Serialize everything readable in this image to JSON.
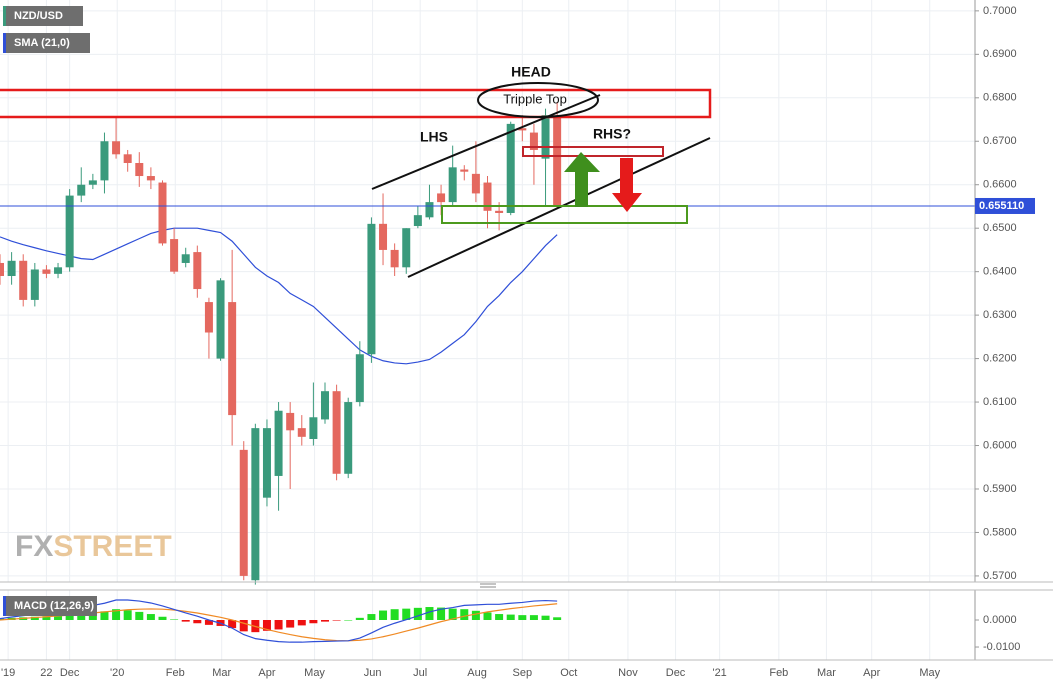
{
  "chart_data": [
    {
      "type": "candlestick",
      "symbol": "NZD/USD",
      "open": [
        0.642,
        0.639,
        0.6425,
        0.6335,
        0.6405,
        0.6395,
        0.641,
        0.6575,
        0.66,
        0.661,
        0.67,
        0.667,
        0.665,
        0.662,
        0.6605,
        0.6475,
        0.642,
        0.6445,
        0.633,
        0.62,
        0.633,
        0.599,
        0.569,
        0.588,
        0.593,
        0.6075,
        0.604,
        0.6015,
        0.606,
        0.6125,
        0.5935,
        0.61,
        0.621,
        0.651,
        0.645,
        0.641,
        0.6505,
        0.6525,
        0.658,
        0.656,
        0.6635,
        0.6625,
        0.6605,
        0.654,
        0.6535,
        0.673,
        0.672,
        0.666,
        0.676
      ],
      "high": [
        0.644,
        0.6445,
        0.644,
        0.642,
        0.6415,
        0.642,
        0.659,
        0.664,
        0.6625,
        0.672,
        0.6756,
        0.668,
        0.6675,
        0.664,
        0.661,
        0.65,
        0.6455,
        0.646,
        0.634,
        0.6385,
        0.645,
        0.601,
        0.605,
        0.606,
        0.61,
        0.61,
        0.607,
        0.6145,
        0.6145,
        0.614,
        0.611,
        0.624,
        0.6525,
        0.658,
        0.6465,
        0.65,
        0.655,
        0.66,
        0.66,
        0.669,
        0.6645,
        0.67,
        0.662,
        0.656,
        0.6745,
        0.676,
        0.674,
        0.6775,
        0.679
      ],
      "low": [
        0.637,
        0.637,
        0.632,
        0.632,
        0.6385,
        0.6385,
        0.64,
        0.656,
        0.659,
        0.658,
        0.666,
        0.663,
        0.6595,
        0.659,
        0.646,
        0.6395,
        0.641,
        0.634,
        0.62,
        0.6195,
        0.6,
        0.569,
        0.568,
        0.586,
        0.585,
        0.59,
        0.6,
        0.6,
        0.605,
        0.592,
        0.5925,
        0.609,
        0.619,
        0.6415,
        0.639,
        0.6395,
        0.65,
        0.652,
        0.653,
        0.655,
        0.661,
        0.656,
        0.65,
        0.6495,
        0.653,
        0.67,
        0.66,
        0.655,
        0.6545
      ],
      "close": [
        0.639,
        0.6425,
        0.6335,
        0.6405,
        0.6395,
        0.641,
        0.6575,
        0.66,
        0.661,
        0.67,
        0.667,
        0.665,
        0.662,
        0.661,
        0.6465,
        0.64,
        0.644,
        0.636,
        0.626,
        0.638,
        0.607,
        0.57,
        0.604,
        0.604,
        0.608,
        0.6035,
        0.602,
        0.6065,
        0.6125,
        0.5935,
        0.61,
        0.621,
        0.651,
        0.645,
        0.641,
        0.65,
        0.653,
        0.656,
        0.656,
        0.664,
        0.663,
        0.658,
        0.654,
        0.6535,
        0.674,
        0.6725,
        0.668,
        0.676,
        0.65511
      ],
      "up_color": "#3a9a7c",
      "down_color": "#e4685f",
      "overlays": [
        {
          "name": "SMA (21,0)",
          "color": "#2f4fd8",
          "values": [
            0.648,
            0.647,
            0.6462,
            0.6455,
            0.6448,
            0.6442,
            0.6436,
            0.643,
            0.6428,
            0.644,
            0.6452,
            0.6464,
            0.6476,
            0.6488,
            0.6495,
            0.65,
            0.65,
            0.65,
            0.6495,
            0.649,
            0.647,
            0.644,
            0.641,
            0.639,
            0.6375,
            0.635,
            0.6335,
            0.632,
            0.6295,
            0.627,
            0.6245,
            0.622,
            0.6205,
            0.6195,
            0.619,
            0.6188,
            0.6192,
            0.6198,
            0.6215,
            0.6235,
            0.6255,
            0.6285,
            0.632,
            0.6345,
            0.6375,
            0.64,
            0.643,
            0.646,
            0.6485
          ]
        }
      ],
      "last_label": "0.655110",
      "annotations": [
        "HEAD",
        "Tripple Top",
        "LHS",
        "RHS?"
      ],
      "watermark": [
        "FX",
        "STREET"
      ],
      "xlim": [
        0,
        84
      ],
      "xticks": [
        {
          "value": 0.7,
          "label": "'19"
        },
        {
          "value": 4.0,
          "label": "22"
        },
        {
          "value": 6.0,
          "label": "Dec"
        },
        {
          "value": 10.1,
          "label": "'20"
        },
        {
          "value": 15.1,
          "label": "Feb"
        },
        {
          "value": 19.1,
          "label": "Mar"
        },
        {
          "value": 23.0,
          "label": "Apr"
        },
        {
          "value": 27.1,
          "label": "May"
        },
        {
          "value": 32.1,
          "label": "Jun"
        },
        {
          "value": 36.2,
          "label": "Jul"
        },
        {
          "value": 41.1,
          "label": "Aug"
        },
        {
          "value": 45.0,
          "label": "Sep"
        },
        {
          "value": 49.0,
          "label": "Oct"
        },
        {
          "value": 54.1,
          "label": "Nov"
        },
        {
          "value": 58.2,
          "label": "Dec"
        },
        {
          "value": 62.0,
          "label": "'21"
        },
        {
          "value": 67.1,
          "label": "Feb"
        },
        {
          "value": 71.2,
          "label": "Mar"
        },
        {
          "value": 75.1,
          "label": "Apr"
        },
        {
          "value": 80.1,
          "label": "May"
        }
      ],
      "ylim": [
        0.5686,
        0.7025
      ],
      "yticks": [
        {
          "value": 0.7,
          "label": "0.7000"
        },
        {
          "value": 0.69,
          "label": "0.6900"
        },
        {
          "value": 0.68,
          "label": "0.6800"
        },
        {
          "value": 0.67,
          "label": "0.6700"
        },
        {
          "value": 0.66,
          "label": "0.6600"
        },
        {
          "value": 0.65,
          "label": "0.6500"
        },
        {
          "value": 0.64,
          "label": "0.6400"
        },
        {
          "value": 0.63,
          "label": "0.6300"
        },
        {
          "value": 0.62,
          "label": "0.6200"
        },
        {
          "value": 0.61,
          "label": "0.6100"
        },
        {
          "value": 0.6,
          "label": "0.6000"
        },
        {
          "value": 0.59,
          "label": "0.5900"
        },
        {
          "value": 0.58,
          "label": "0.5800"
        },
        {
          "value": 0.57,
          "label": "0.5700"
        }
      ],
      "grid": true
    },
    {
      "type": "macd",
      "name": "MACD (12,26,9)",
      "hist": [
        0.0005,
        0.0008,
        0.001,
        0.0012,
        0.0014,
        0.0016,
        0.002,
        0.0024,
        0.0028,
        0.0032,
        0.004,
        0.0036,
        0.003,
        0.0022,
        0.0012,
        0.0002,
        -0.0006,
        -0.0012,
        -0.0018,
        -0.0022,
        -0.003,
        -0.0042,
        -0.0045,
        -0.004,
        -0.0035,
        -0.0028,
        -0.002,
        -0.0012,
        -0.0006,
        -0.0002,
        0.0,
        0.0008,
        0.0022,
        0.0035,
        0.004,
        0.0042,
        0.0045,
        0.0048,
        0.0046,
        0.0042,
        0.004,
        0.0034,
        0.0028,
        0.0022,
        0.002,
        0.0018,
        0.0018,
        0.0016,
        0.001
      ],
      "macd": [
        0.0005,
        0.0011,
        0.0016,
        0.0021,
        0.0026,
        0.0031,
        0.0038,
        0.0046,
        0.0054,
        0.0062,
        0.0074,
        0.0074,
        0.007,
        0.0063,
        0.0052,
        0.0039,
        0.0026,
        0.0014,
        0.0,
        -0.0012,
        -0.003,
        -0.0054,
        -0.0069,
        -0.0075,
        -0.008,
        -0.0082,
        -0.0082,
        -0.008,
        -0.0079,
        -0.0078,
        -0.0077,
        -0.0067,
        -0.0048,
        -0.0027,
        -0.0012,
        0.0001,
        0.0015,
        0.003,
        0.004,
        0.0046,
        0.0054,
        0.0056,
        0.0058,
        0.0058,
        0.0062,
        0.0065,
        0.007,
        0.0072,
        0.007
      ],
      "signal": [
        0.0,
        0.0003,
        0.0006,
        0.0009,
        0.0012,
        0.0015,
        0.0018,
        0.0022,
        0.0026,
        0.003,
        0.0034,
        0.0038,
        0.004,
        0.0041,
        0.004,
        0.0037,
        0.0032,
        0.0026,
        0.0018,
        0.001,
        0.0,
        -0.0012,
        -0.0024,
        -0.0035,
        -0.0045,
        -0.0054,
        -0.0062,
        -0.0068,
        -0.0073,
        -0.0076,
        -0.0077,
        -0.0075,
        -0.007,
        -0.0062,
        -0.0052,
        -0.0041,
        -0.003,
        -0.0018,
        -0.0006,
        0.0004,
        0.0014,
        0.0022,
        0.003,
        0.0036,
        0.0042,
        0.0047,
        0.0052,
        0.0056,
        0.006
      ],
      "macd_color": "#2f4fd8",
      "signal_color": "#f08a24",
      "up_color": "#22dd22",
      "down_color": "#ee1111",
      "ylim": [
        -0.0148,
        0.0111
      ],
      "yticks": [
        {
          "value": 0.0,
          "label": "0.0000"
        },
        {
          "value": -0.01,
          "label": "-0.0100"
        }
      ]
    }
  ]
}
